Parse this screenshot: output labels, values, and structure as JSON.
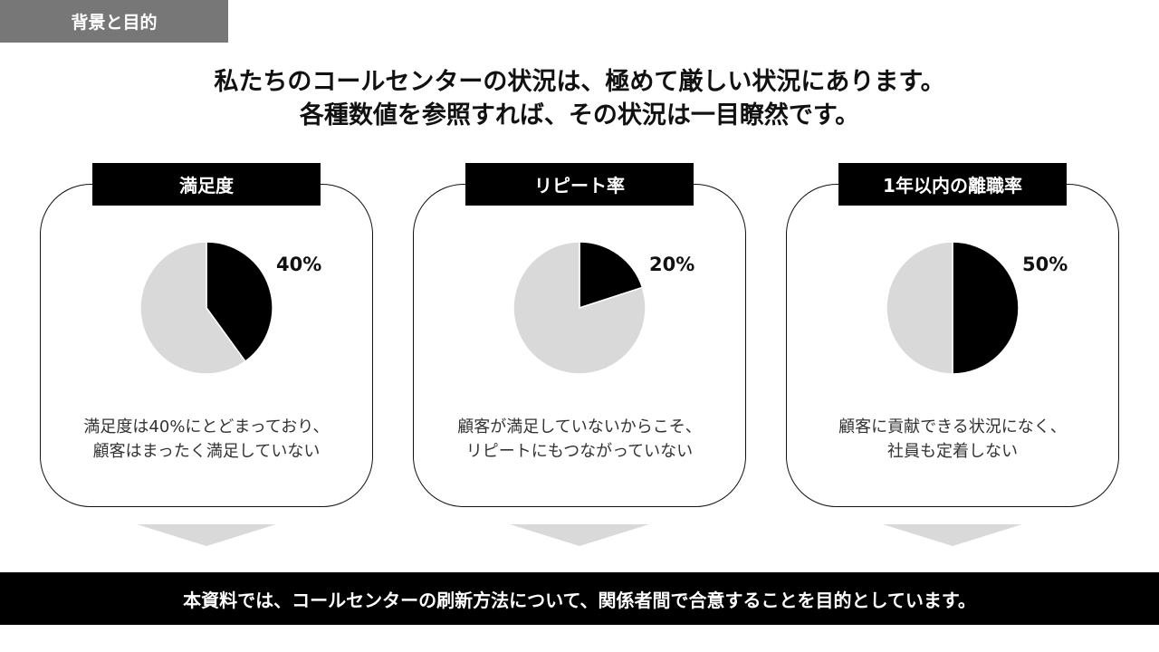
{
  "section_tag": "背景と目的",
  "headline": {
    "line1": "私たちのコールセンターの状況は、極めて厳しい状況にあります。",
    "line2": "各種数値を参照すれば、その状況は一目瞭然です。"
  },
  "cards": [
    {
      "label": "満足度",
      "percent_label": "40%",
      "desc_line1": "満足度は40%にとどまっており、",
      "desc_line2": "顧客はまったく満足していない"
    },
    {
      "label": "リピート率",
      "percent_label": "20%",
      "desc_line1": "顧客が満足していないからこそ、",
      "desc_line2": "リピートにもつながっていない"
    },
    {
      "label": "1年以内の離職率",
      "percent_label": "50%",
      "desc_line1": "顧客に貢献できる状況になく、",
      "desc_line2": "社員も定着しない"
    }
  ],
  "bottom_message": "本資料では、コールセンターの刷新方法について、関係者間で合意することを目的としています。",
  "chart_data": [
    {
      "type": "pie",
      "categories": [
        "",
        ""
      ],
      "values": [
        40,
        60
      ],
      "colors": [
        "#000000",
        "#d9d9d9"
      ]
    },
    {
      "type": "pie",
      "categories": [
        "",
        ""
      ],
      "values": [
        20,
        80
      ],
      "colors": [
        "#000000",
        "#d9d9d9"
      ]
    },
    {
      "type": "pie",
      "categories": [
        "",
        ""
      ],
      "values": [
        50,
        50
      ],
      "colors": [
        "#000000",
        "#d9d9d9"
      ]
    }
  ]
}
